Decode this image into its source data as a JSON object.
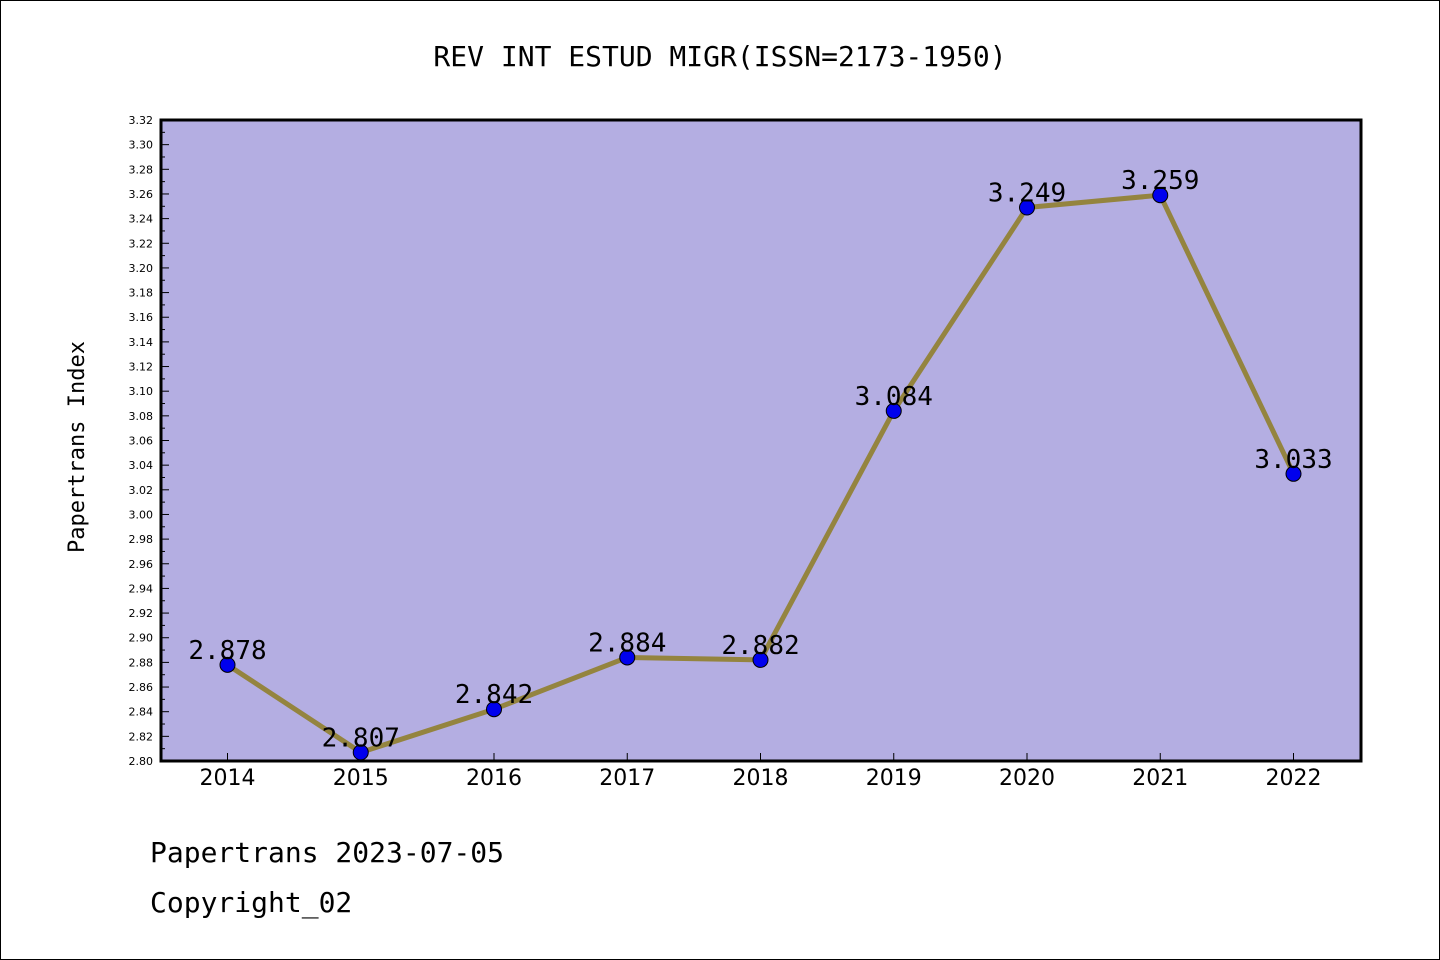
{
  "chart_data": {
    "type": "line",
    "title": "REV INT ESTUD MIGR(ISSN=2173-1950)",
    "xlabel": "",
    "ylabel": "Papertrans Index",
    "categories": [
      "2014",
      "2015",
      "2016",
      "2017",
      "2018",
      "2019",
      "2020",
      "2021",
      "2022"
    ],
    "series": [
      {
        "values": [
          2.878,
          2.807,
          2.842,
          2.884,
          2.882,
          3.084,
          3.249,
          3.259,
          3.033
        ]
      }
    ],
    "data_labels": [
      "2.878",
      "2.807",
      "2.842",
      "2.884",
      "2.882",
      "3.084",
      "3.249",
      "3.259",
      "3.033"
    ],
    "ylim": [
      2.8,
      3.32
    ],
    "yticks": [
      "2.80",
      "2.82",
      "2.84",
      "2.86",
      "2.88",
      "2.90",
      "2.92",
      "2.94",
      "2.96",
      "2.98",
      "3.00",
      "3.02",
      "3.04",
      "3.06",
      "3.08",
      "3.10",
      "3.12",
      "3.14",
      "3.16",
      "3.18",
      "3.20",
      "3.22",
      "3.24",
      "3.26",
      "3.28",
      "3.30",
      "3.32"
    ],
    "grid": false,
    "legend": "none",
    "colors": {
      "plot_bg": "#b4aee2",
      "line": "#94843f",
      "marker": "#0000ee"
    }
  },
  "footer": {
    "line1": "Papertrans 2023-07-05",
    "line2": "Copyright_02"
  }
}
